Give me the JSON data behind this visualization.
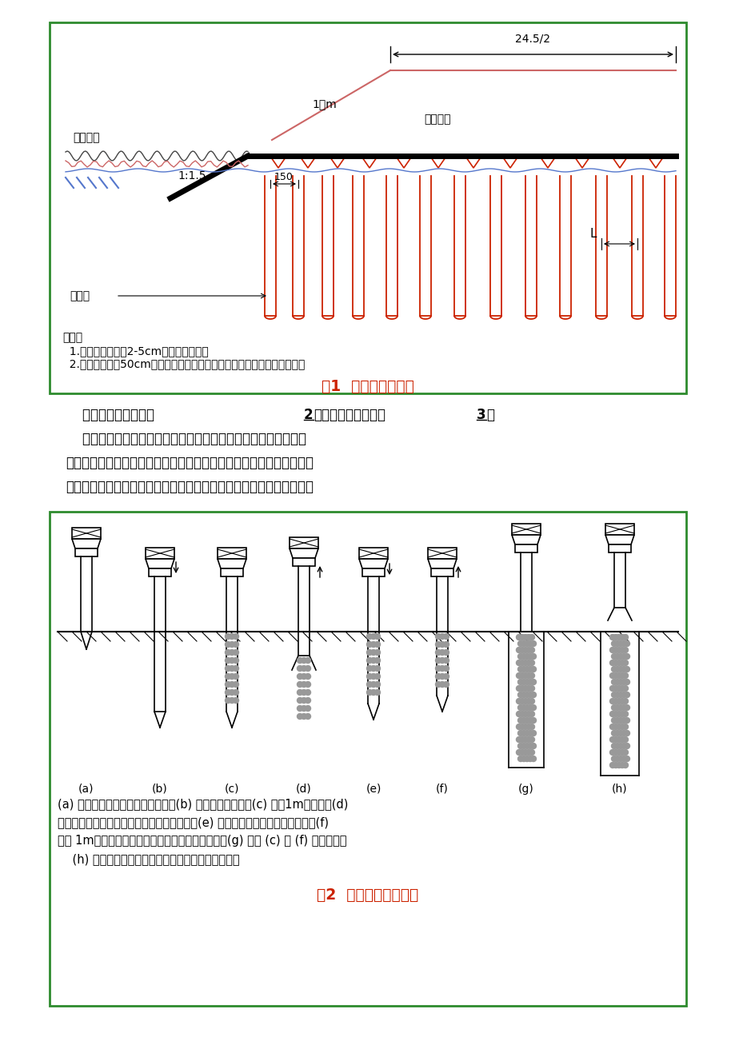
{
  "page_bg": "#ffffff",
  "border_color": "#2e8b2e",
  "fig1_title": "图1  软基处理示意图",
  "fig2_title": "图2  碎石桩施工程序图",
  "note1": "说明：",
  "note2": "  1.填料采用粒径为2-5cm的未风化碎石；",
  "note3": "  2.碎石桩桩径为50cm，按正三角形布置，施工时不得出现断桩、径缩桩；",
  "desc1": "(a) 桩架就位，套管尖插在标桩上。(b) 打设到设计标高。(c) 灌入1m高碎石。(d)",
  "desc2": "拔起套管，活瓣桩尖打开，碎石留在桩孔内。(e) 将套管再次打至填筑层底标高。(f)",
  "desc3": "灌入 1m高碎石，边振边提升，完成一层碎石填筑。(g) 重复 (c) ～ (f) 施工步骤。",
  "desc4": "    (h) 拔出套管，完成碎石桩。进行下一层碎石填筑。",
  "text_line1a": "    碎石桩施工程序见图",
  "text_line1b": "2",
  "text_line1c": "，施工工艺流程见图",
  "text_line1d": "3",
  "text_line1e": "。",
  "text_line2": "    施工前做成桩试验，认真记录桩的贯入时间和深度、压入的碎石",
  "text_line3": "量和电流变化，确定正式施工时采用的参数，如密实电流、留振时间、",
  "text_line4": "填料量等。成桩按设计和规范要求抽检其成桩效果，复核地基承载力。",
  "label_24": "24.5/2",
  "label_1m": "1：m",
  "label_yuandi": "原地面线",
  "label_suishi": "碎石垫层",
  "label_slope": "1:1.5",
  "label_150": "150",
  "label_L": "L",
  "label_pile": "碎石桩",
  "fig2_labels": [
    "(a)",
    "(b)",
    "(c)",
    "(d)",
    "(e)",
    "(f)",
    "(g)",
    "(h)"
  ],
  "pile_color": "#cc2200",
  "tri_color": "#cc2200",
  "road_color": "#cc6666",
  "blue_color": "#5577cc",
  "ground_color": "#000000",
  "title_color": "#cc2200",
  "text_color": "#000000"
}
